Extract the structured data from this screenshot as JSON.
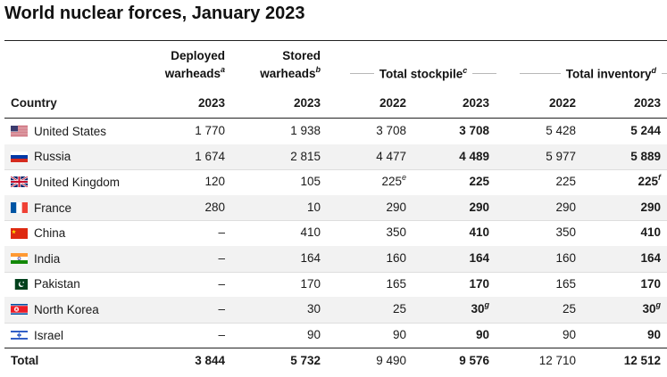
{
  "title": "World nuclear forces, January 2023",
  "columns": {
    "country": "Country",
    "deployed": {
      "line1": "Deployed",
      "line2": "warheads",
      "note": "a",
      "year": "2023"
    },
    "stored": {
      "line1": "Stored",
      "line2": "warheads",
      "note": "b",
      "year": "2023"
    },
    "stockpile": {
      "label": "Total stockpile",
      "note": "c",
      "year1": "2022",
      "year2": "2023"
    },
    "inventory": {
      "label": "Total inventory",
      "note": "d",
      "year1": "2022",
      "year2": "2023"
    }
  },
  "rows": [
    {
      "country": "United States",
      "flag": "us-flag-icon",
      "deployed": "1 770",
      "stored": "1 938",
      "stock2022": "3 708",
      "stock2022_note": "",
      "stock2023": "3 708",
      "stock2023_note": "",
      "inv2022": "5 428",
      "inv2023": "5 244",
      "inv2023_note": ""
    },
    {
      "country": "Russia",
      "flag": "russia-flag-icon",
      "deployed": "1 674",
      "stored": "2 815",
      "stock2022": "4 477",
      "stock2022_note": "",
      "stock2023": "4 489",
      "stock2023_note": "",
      "inv2022": "5 977",
      "inv2023": "5 889",
      "inv2023_note": ""
    },
    {
      "country": "United Kingdom",
      "flag": "uk-flag-icon",
      "deployed": "120",
      "stored": "105",
      "stock2022": "225",
      "stock2022_note": "e",
      "stock2023": "225",
      "stock2023_note": "",
      "inv2022": "225",
      "inv2023": "225",
      "inv2023_note": "f"
    },
    {
      "country": "France",
      "flag": "france-flag-icon",
      "deployed": "280",
      "stored": "10",
      "stock2022": "290",
      "stock2022_note": "",
      "stock2023": "290",
      "stock2023_note": "",
      "inv2022": "290",
      "inv2023": "290",
      "inv2023_note": ""
    },
    {
      "country": "China",
      "flag": "china-flag-icon",
      "deployed": "–",
      "stored": "410",
      "stock2022": "350",
      "stock2022_note": "",
      "stock2023": "410",
      "stock2023_note": "",
      "inv2022": "350",
      "inv2023": "410",
      "inv2023_note": ""
    },
    {
      "country": "India",
      "flag": "india-flag-icon",
      "deployed": "–",
      "stored": "164",
      "stock2022": "160",
      "stock2022_note": "",
      "stock2023": "164",
      "stock2023_note": "",
      "inv2022": "160",
      "inv2023": "164",
      "inv2023_note": ""
    },
    {
      "country": "Pakistan",
      "flag": "pakistan-flag-icon",
      "deployed": "–",
      "stored": "170",
      "stock2022": "165",
      "stock2022_note": "",
      "stock2023": "170",
      "stock2023_note": "",
      "inv2022": "165",
      "inv2023": "170",
      "inv2023_note": ""
    },
    {
      "country": "North Korea",
      "flag": "north-korea-flag-icon",
      "deployed": "–",
      "stored": "30",
      "stock2022": "25",
      "stock2022_note": "",
      "stock2023": "30",
      "stock2023_note": "g",
      "inv2022": "25",
      "inv2023": "30",
      "inv2023_note": "g"
    },
    {
      "country": "Israel",
      "flag": "israel-flag-icon",
      "deployed": "–",
      "stored": "90",
      "stock2022": "90",
      "stock2022_note": "",
      "stock2023": "90",
      "stock2023_note": "",
      "inv2022": "90",
      "inv2023": "90",
      "inv2023_note": ""
    }
  ],
  "total": {
    "label": "Total",
    "deployed": "3 844",
    "stored": "5 732",
    "stock2022": "9 490",
    "stock2023": "9 576",
    "inv2022": "12 710",
    "inv2023": "12 512"
  }
}
